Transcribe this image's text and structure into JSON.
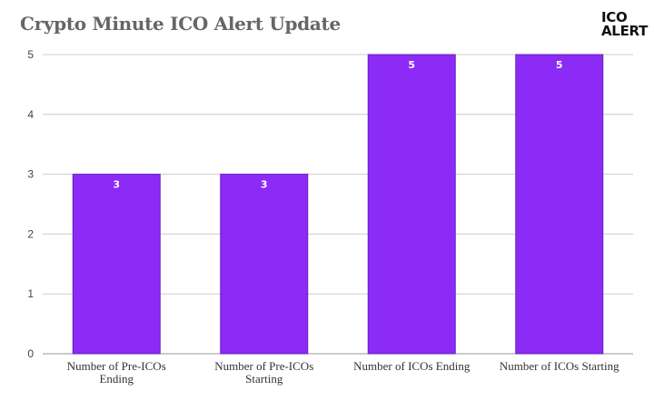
{
  "logo": {
    "line1": "ICO",
    "line2": "ALERT"
  },
  "chart_data": {
    "type": "bar",
    "title": "Crypto Minute ICO Alert Update",
    "categories": [
      [
        "Number of Pre-ICOs",
        "Ending"
      ],
      [
        "Number of Pre-ICOs",
        "Starting"
      ],
      [
        "Number of ICOs Ending"
      ],
      [
        "Number of ICOs Starting"
      ]
    ],
    "values": [
      3,
      3,
      5,
      5
    ],
    "data_labels": [
      "3",
      "3",
      "5",
      "5"
    ],
    "ylim": [
      0,
      5
    ],
    "yticks": [
      0,
      1,
      2,
      3,
      4,
      5
    ],
    "xlabel": "",
    "ylabel": "",
    "grid": true,
    "bar_color": "#8b2bf5",
    "bar_edge_color": "#6a1fc0",
    "grid_color": "#cccccc"
  }
}
